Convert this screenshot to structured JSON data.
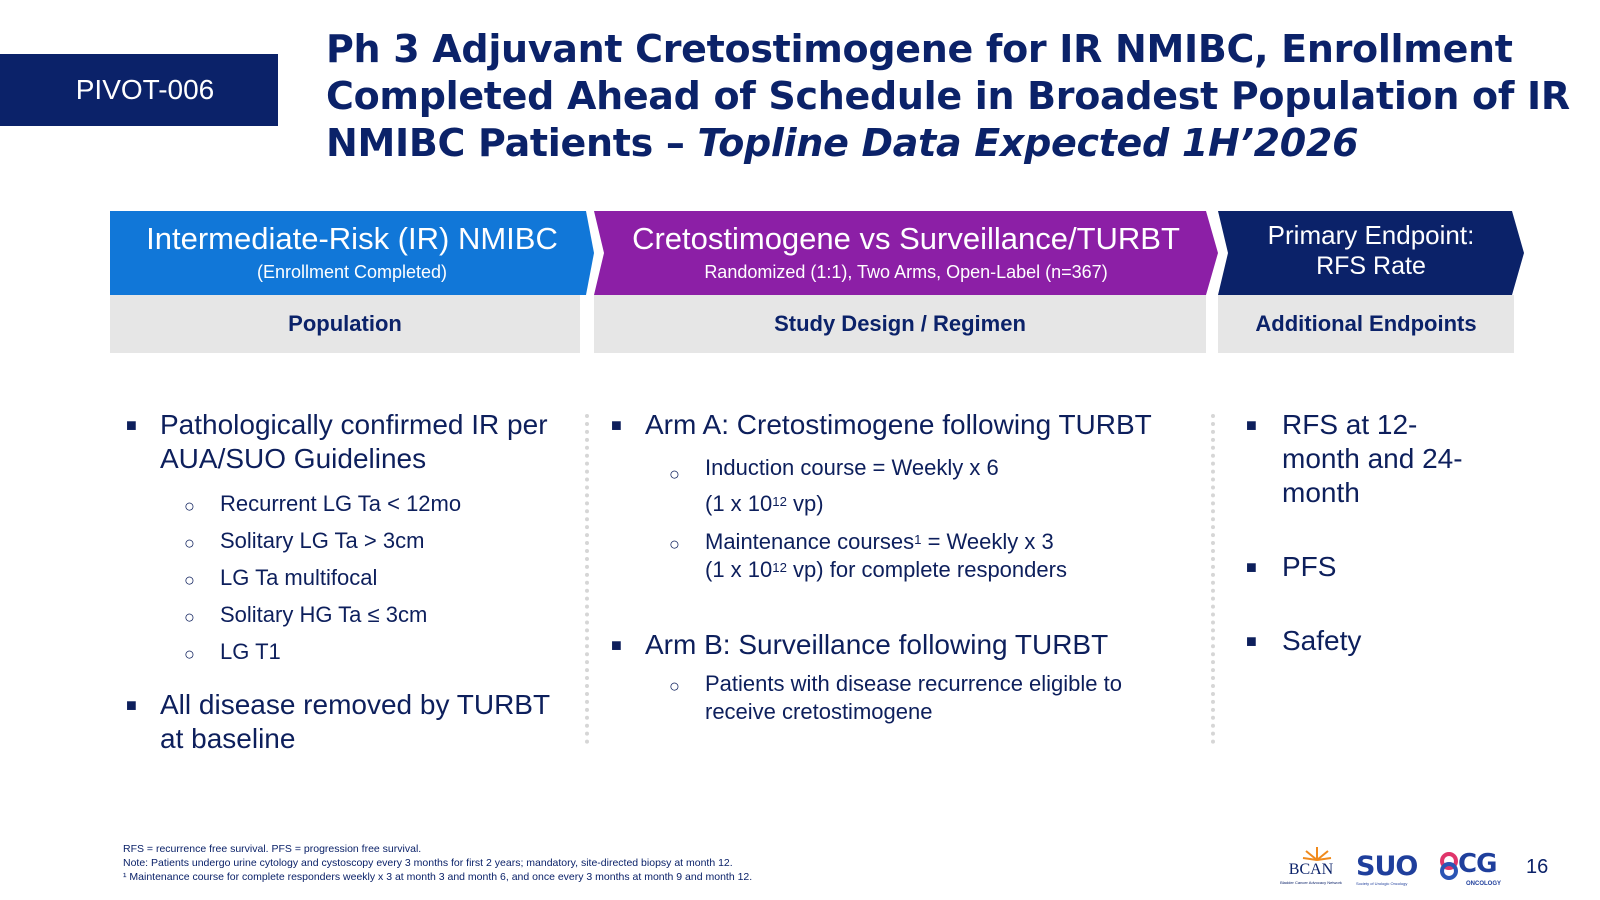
{
  "tag": "PIVOT-006",
  "title": {
    "main": "Ph 3 Adjuvant Cretostimogene for IR NMIBC, Enrollment Completed Ahead of Schedule in Broadest Population of IR NMIBC Patients – ",
    "italic": "Topline Data Expected 1H’2026"
  },
  "chevrons": [
    {
      "line1": "Intermediate-Risk (IR) NMIBC",
      "line2": "(Enrollment Completed)",
      "color": "#1177d8"
    },
    {
      "line1": "Cretostimogene vs Surveillance/TURBT",
      "line2": "Randomized (1:1), Two Arms, Open-Label (n=367)",
      "color": "#8c1fa6"
    },
    {
      "line1": "Primary Endpoint:",
      "line2": "RFS Rate",
      "color": "#0b2269"
    }
  ],
  "subheaders": [
    "Population",
    "Study Design / Regimen",
    "Additional Endpoints"
  ],
  "population": {
    "bullet1": "Pathologically confirmed IR per AUA/SUO Guidelines",
    "sub": [
      "Recurrent LG Ta < 12mo",
      "Solitary LG Ta > 3cm",
      "LG Ta multifocal",
      "Solitary HG Ta ≤ 3cm",
      "LG T1"
    ],
    "bullet2": "All disease removed by TURBT at baseline"
  },
  "design": {
    "armA": "Arm A: Cretostimogene following TURBT",
    "armA_sub1_a": "Induction course = Weekly x 6",
    "armA_sub1_b_pre": "(1 x 10",
    "armA_sub1_b_sup": "12",
    "armA_sub1_b_post": " vp)",
    "armA_sub2_a_pre": "Maintenance courses",
    "armA_sub2_a_sup": "1",
    "armA_sub2_a_post": " = Weekly x 3",
    "armA_sub2_b_pre": "(1 x 10",
    "armA_sub2_b_sup": "12",
    "armA_sub2_b_post": " vp) for complete responders",
    "armB": "Arm B: Surveillance following TURBT",
    "armB_sub": "Patients with disease recurrence eligible to receive cretostimogene"
  },
  "endpoints": [
    "RFS at 12-month and 24-month",
    "PFS",
    "Safety"
  ],
  "footnotes": [
    "RFS = recurrence free survival. PFS = progression free survival.",
    "Note: Patients undergo urine cytology and cystoscopy every 3 months for first 2 years; mandatory, site-directed biopsy at month 12.",
    "¹ Maintenance course for complete responders weekly x 3 at month 3 and month 6, and once every 3 months at month 9 and month 12."
  ],
  "logos": {
    "bcan": "BCAN",
    "bcan_sub": "Bladder Cancer Advocacy Network",
    "suo": "SUO",
    "suo_sub": "Society of Urologic Oncology",
    "cg": "CG",
    "cg_sub": "ONCOLOGY"
  },
  "page_number": "16"
}
